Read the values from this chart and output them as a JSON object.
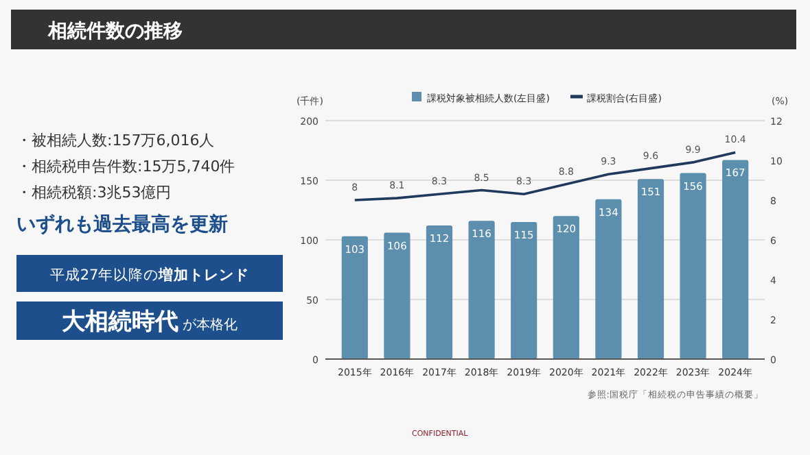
{
  "chart_data": {
    "type": "bar",
    "title": "相続件数の推移",
    "categories": [
      "2015年",
      "2016年",
      "2017年",
      "2018年",
      "2019年",
      "2020年",
      "2021年",
      "2022年",
      "2023年",
      "2024年"
    ],
    "series": [
      {
        "name": "課税対象被相続人数(左目盛)",
        "color": "#5b8fad",
        "values": [
          103,
          106,
          112,
          116,
          115,
          120,
          134,
          151,
          156,
          167
        ]
      },
      {
        "name": "課税割合(右目盛)",
        "type": "line",
        "axis": "y2",
        "color": "#1f3a5c",
        "values": [
          8,
          8.1,
          8.3,
          8.5,
          8.3,
          8.8,
          9.3,
          9.6,
          9.9,
          10.4
        ]
      }
    ],
    "ylabel": "(千件)",
    "y2label": "(%)",
    "ylim": [
      0,
      200
    ],
    "yticks": [
      0,
      50,
      100,
      150,
      200
    ],
    "y2lim": [
      0,
      12
    ],
    "y2ticks": [
      0,
      2,
      4,
      6,
      8,
      10,
      12
    ],
    "grid": "y",
    "legend": "top",
    "data_labels": true,
    "annotations": [
      "・被相続人数:157万6,016人",
      "・相続税申告件数:15万5,740件",
      "・相続税額:3兆53億円",
      "いずれも過去最高を更新",
      "平成27年以降の**増加トレンド**",
      "**大相続時代** が本格化",
      "参照:国税庁「相続税の申告事績の概要」",
      "CONFIDENTIAL"
    ]
  }
}
